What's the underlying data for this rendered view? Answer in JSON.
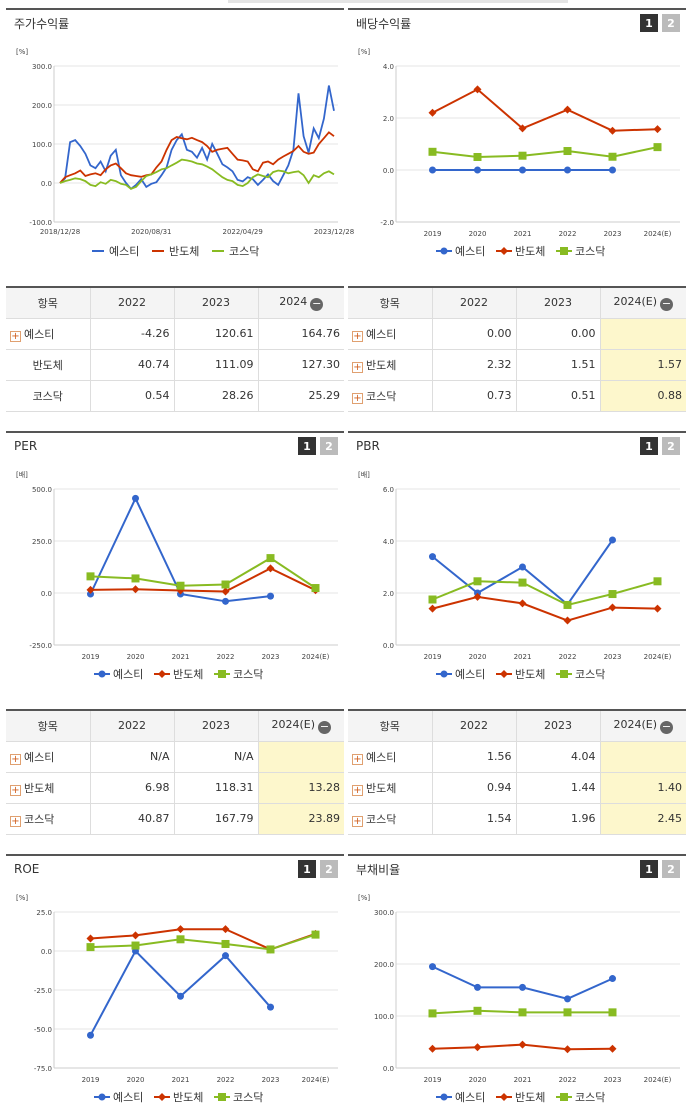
{
  "colors": {
    "yesti": "#3366cc",
    "bando": "#cc3300",
    "kosdaq": "#88bb22",
    "highlight": "#fdf7cc"
  },
  "legend": [
    {
      "label": "예스티",
      "icon": "circle-icon"
    },
    {
      "label": "반도체",
      "icon": "diamond-icon"
    },
    {
      "label": "코스닥",
      "icon": "square-icon"
    }
  ],
  "tabs": [
    "1",
    "2"
  ],
  "panels": {
    "stock": {
      "title": "주가수익률"
    },
    "div": {
      "title": "배당수익률"
    },
    "per": {
      "title": "PER"
    },
    "pbr": {
      "title": "PBR"
    },
    "roe": {
      "title": "ROE"
    },
    "debt": {
      "title": "부채비율"
    }
  },
  "tables": {
    "stock": {
      "headers": [
        "항목",
        "2022",
        "2023",
        "2024"
      ],
      "rows": [
        {
          "label": "예스티",
          "plus": true,
          "values": [
            "-4.26",
            "120.61",
            "164.76"
          ]
        },
        {
          "label": "반도체",
          "plus": false,
          "values": [
            "40.74",
            "111.09",
            "127.30"
          ]
        },
        {
          "label": "코스닥",
          "plus": false,
          "values": [
            "0.54",
            "28.26",
            "25.29"
          ]
        }
      ]
    },
    "div": {
      "headers": [
        "항목",
        "2022",
        "2023",
        "2024(E)"
      ],
      "rows": [
        {
          "label": "예스티",
          "plus": true,
          "values": [
            "0.00",
            "0.00",
            ""
          ]
        },
        {
          "label": "반도체",
          "plus": true,
          "values": [
            "2.32",
            "1.51",
            "1.57"
          ]
        },
        {
          "label": "코스닥",
          "plus": true,
          "values": [
            "0.73",
            "0.51",
            "0.88"
          ]
        }
      ]
    },
    "per": {
      "headers": [
        "항목",
        "2022",
        "2023",
        "2024(E)"
      ],
      "rows": [
        {
          "label": "예스티",
          "plus": true,
          "values": [
            "N/A",
            "N/A",
            ""
          ]
        },
        {
          "label": "반도체",
          "plus": true,
          "values": [
            "6.98",
            "118.31",
            "13.28"
          ]
        },
        {
          "label": "코스닥",
          "plus": true,
          "values": [
            "40.87",
            "167.79",
            "23.89"
          ]
        }
      ]
    },
    "pbr": {
      "headers": [
        "항목",
        "2022",
        "2023",
        "2024(E)"
      ],
      "rows": [
        {
          "label": "예스티",
          "plus": true,
          "values": [
            "1.56",
            "4.04",
            ""
          ]
        },
        {
          "label": "반도체",
          "plus": true,
          "values": [
            "0.94",
            "1.44",
            "1.40"
          ]
        },
        {
          "label": "코스닥",
          "plus": true,
          "values": [
            "1.54",
            "1.96",
            "2.45"
          ]
        }
      ]
    }
  },
  "chart_data": [
    {
      "id": "stock",
      "type": "line",
      "unit": "[%]",
      "ylim": [
        -100,
        300
      ],
      "yticks": [
        "300.0",
        "200.0",
        "100.0",
        "0.0",
        "-100.0"
      ],
      "xticks": [
        "2018/12/28",
        "2020/08/31",
        "2022/04/29",
        "2023/12/28"
      ],
      "series": [
        {
          "name": "예스티",
          "values": [
            0,
            12,
            105,
            110,
            95,
            75,
            45,
            38,
            55,
            30,
            70,
            85,
            20,
            0,
            -15,
            -5,
            10,
            -10,
            -2,
            2,
            20,
            40,
            85,
            110,
            125,
            85,
            80,
            65,
            90,
            60,
            100,
            75,
            48,
            40,
            30,
            8,
            4,
            15,
            10,
            -5,
            8,
            22,
            5,
            -5,
            20,
            45,
            85,
            230,
            120,
            78,
            140,
            115,
            165,
            250,
            185
          ]
        },
        {
          "name": "반도체",
          "values": [
            0,
            15,
            20,
            25,
            32,
            18,
            22,
            25,
            20,
            35,
            45,
            50,
            38,
            25,
            20,
            18,
            16,
            20,
            22,
            40,
            55,
            85,
            110,
            118,
            115,
            112,
            116,
            110,
            105,
            95,
            80,
            85,
            88,
            90,
            75,
            60,
            58,
            55,
            35,
            30,
            52,
            55,
            48,
            60,
            68,
            75,
            82,
            95,
            80,
            75,
            78,
            100,
            115,
            130,
            120
          ]
        },
        {
          "name": "코스닥",
          "values": [
            0,
            5,
            8,
            12,
            10,
            5,
            -5,
            -8,
            2,
            -2,
            8,
            5,
            -2,
            -5,
            -15,
            -10,
            5,
            18,
            22,
            28,
            35,
            38,
            45,
            52,
            60,
            58,
            55,
            50,
            48,
            42,
            35,
            25,
            15,
            8,
            5,
            -5,
            -8,
            0,
            15,
            22,
            18,
            15,
            28,
            32,
            30,
            25,
            28,
            30,
            20,
            0,
            20,
            15,
            25,
            30,
            22
          ]
        }
      ]
    },
    {
      "id": "div",
      "type": "line",
      "unit": "[%]",
      "ylim": [
        -2,
        4
      ],
      "yticks": [
        "4.0",
        "2.0",
        "0.0",
        "-2.0"
      ],
      "categories": [
        "2019",
        "2020",
        "2021",
        "2022",
        "2023",
        "2024(E)"
      ],
      "series": [
        {
          "name": "예스티",
          "values": [
            0.0,
            0.0,
            0.0,
            0.0,
            0.0,
            null
          ]
        },
        {
          "name": "반도체",
          "values": [
            2.2,
            3.1,
            1.6,
            2.32,
            1.51,
            1.57
          ]
        },
        {
          "name": "코스닥",
          "values": [
            0.7,
            0.5,
            0.55,
            0.73,
            0.51,
            0.88
          ]
        }
      ]
    },
    {
      "id": "per",
      "type": "line",
      "unit": "[배]",
      "ylim": [
        -250,
        500
      ],
      "yticks": [
        "500.0",
        "250.0",
        "0.0",
        "-250.0"
      ],
      "categories": [
        "2019",
        "2020",
        "2021",
        "2022",
        "2023",
        "2024(E)"
      ],
      "series": [
        {
          "name": "예스티",
          "values": [
            -5,
            455,
            -5,
            -40,
            -15,
            null
          ]
        },
        {
          "name": "반도체",
          "values": [
            15,
            18,
            12,
            6.98,
            118.31,
            13.28
          ]
        },
        {
          "name": "코스닥",
          "values": [
            80,
            70,
            35,
            40.87,
            167.79,
            23.89
          ]
        }
      ]
    },
    {
      "id": "pbr",
      "type": "line",
      "unit": "[배]",
      "ylim": [
        0,
        6
      ],
      "yticks": [
        "6.0",
        "4.0",
        "2.0",
        "0.0"
      ],
      "categories": [
        "2019",
        "2020",
        "2021",
        "2022",
        "2023",
        "2024(E)"
      ],
      "series": [
        {
          "name": "예스티",
          "values": [
            3.4,
            2.0,
            3.0,
            1.56,
            4.04,
            null
          ]
        },
        {
          "name": "반도체",
          "values": [
            1.4,
            1.85,
            1.6,
            0.94,
            1.44,
            1.4
          ]
        },
        {
          "name": "코스닥",
          "values": [
            1.75,
            2.45,
            2.4,
            1.54,
            1.96,
            2.45
          ]
        }
      ]
    },
    {
      "id": "roe",
      "type": "line",
      "unit": "[%]",
      "ylim": [
        -75,
        25
      ],
      "yticks": [
        "25.0",
        "0.0",
        "-25.0",
        "-50.0",
        "-75.0"
      ],
      "categories": [
        "2019",
        "2020",
        "2021",
        "2022",
        "2023",
        "2024(E)"
      ],
      "series": [
        {
          "name": "예스티",
          "values": [
            -54,
            0,
            -29,
            -3,
            -36,
            null
          ]
        },
        {
          "name": "반도체",
          "values": [
            8,
            10,
            14,
            14,
            1,
            11
          ]
        },
        {
          "name": "코스닥",
          "values": [
            2.5,
            3.5,
            7.5,
            4.5,
            1,
            10.5
          ]
        }
      ]
    },
    {
      "id": "debt",
      "type": "line",
      "unit": "[%]",
      "ylim": [
        0,
        300
      ],
      "yticks": [
        "300.0",
        "200.0",
        "100.0",
        "0.0"
      ],
      "categories": [
        "2019",
        "2020",
        "2021",
        "2022",
        "2023",
        "2024(E)"
      ],
      "series": [
        {
          "name": "예스티",
          "values": [
            195,
            155,
            155,
            133,
            172,
            null
          ]
        },
        {
          "name": "반도체",
          "values": [
            37,
            40,
            45,
            36,
            37,
            null
          ]
        },
        {
          "name": "코스닥",
          "values": [
            105,
            110,
            107,
            107,
            107,
            null
          ]
        }
      ]
    }
  ]
}
